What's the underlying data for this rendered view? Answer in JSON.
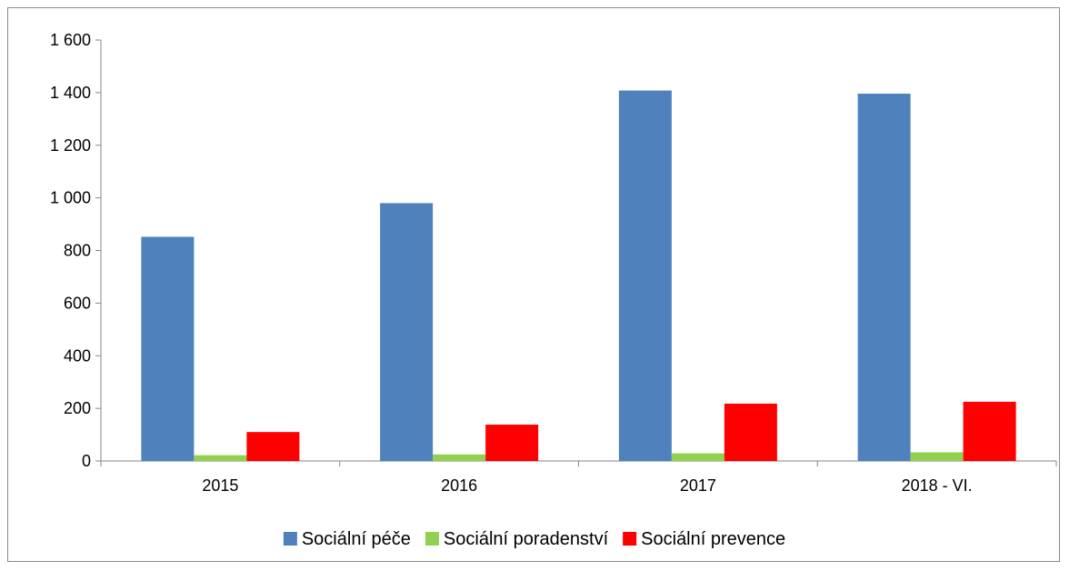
{
  "chart_data": {
    "type": "bar",
    "title": "",
    "xlabel": "",
    "ylabel": "",
    "categories": [
      "2015",
      "2016",
      "2017",
      "2018 - VI."
    ],
    "series": [
      {
        "name": "Sociální péče",
        "color": "#4F81BD",
        "values": [
          852,
          980,
          1408,
          1396
        ]
      },
      {
        "name": "Sociální poradenství",
        "color": "#92D050",
        "values": [
          22,
          25,
          29,
          33
        ]
      },
      {
        "name": "Sociální prevence",
        "color": "#FF0000",
        "values": [
          110,
          138,
          218,
          225
        ]
      }
    ],
    "ylim": [
      0,
      1600
    ],
    "yticks": [
      0,
      200,
      400,
      600,
      800,
      1000,
      1200,
      1400,
      1600
    ],
    "ytick_labels": [
      "0",
      "200",
      "400",
      "600",
      "800",
      "1 000",
      "1 200",
      "1 400",
      "1 600"
    ],
    "grid": false,
    "legend_position": "bottom"
  }
}
